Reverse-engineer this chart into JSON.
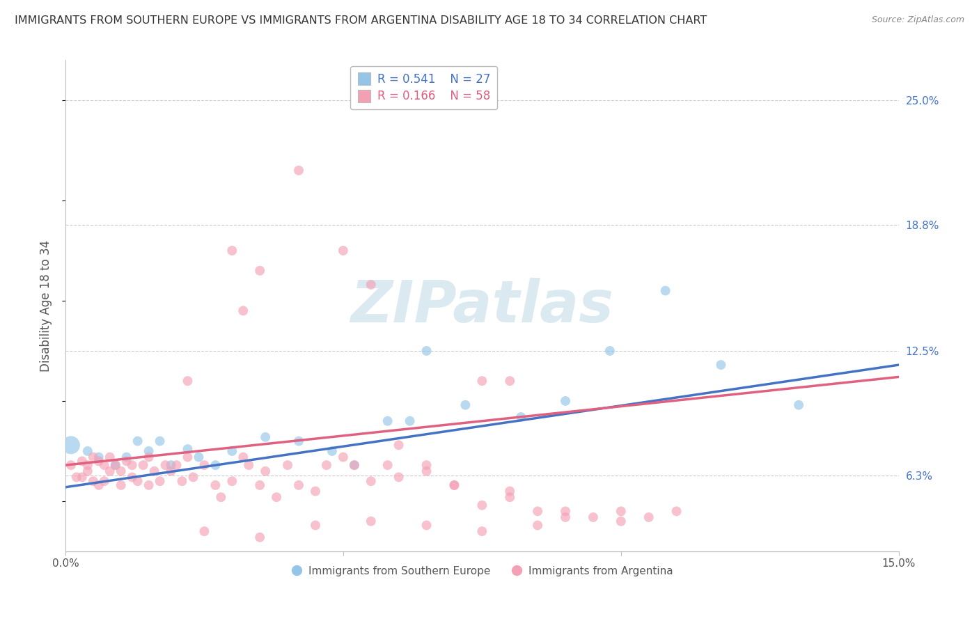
{
  "title": "IMMIGRANTS FROM SOUTHERN EUROPE VS IMMIGRANTS FROM ARGENTINA DISABILITY AGE 18 TO 34 CORRELATION CHART",
  "source": "Source: ZipAtlas.com",
  "ylabel": "Disability Age 18 to 34",
  "xlim": [
    0.0,
    0.15
  ],
  "ylim": [
    0.025,
    0.27
  ],
  "right_ytick_labels": [
    "25.0%",
    "18.8%",
    "12.5%",
    "6.3%"
  ],
  "right_ytick_values": [
    0.25,
    0.188,
    0.125,
    0.063
  ],
  "legend_r1": "R = 0.541",
  "legend_n1": "N = 27",
  "legend_r2": "R = 0.166",
  "legend_n2": "N = 58",
  "legend_label1": "Immigrants from Southern Europe",
  "legend_label2": "Immigrants from Argentina",
  "color_blue": "#92C5E8",
  "color_pink": "#F4A0B4",
  "line_color_blue": "#4472C4",
  "line_color_pink": "#E06080",
  "background_color": "#FFFFFF",
  "grid_color": "#CCCCCC",
  "blue_points": [
    [
      0.001,
      0.078,
      350
    ],
    [
      0.004,
      0.075,
      100
    ],
    [
      0.006,
      0.072,
      100
    ],
    [
      0.009,
      0.068,
      100
    ],
    [
      0.011,
      0.072,
      100
    ],
    [
      0.013,
      0.08,
      100
    ],
    [
      0.015,
      0.075,
      100
    ],
    [
      0.017,
      0.08,
      100
    ],
    [
      0.019,
      0.068,
      100
    ],
    [
      0.022,
      0.076,
      100
    ],
    [
      0.024,
      0.072,
      100
    ],
    [
      0.027,
      0.068,
      100
    ],
    [
      0.03,
      0.075,
      100
    ],
    [
      0.036,
      0.082,
      100
    ],
    [
      0.042,
      0.08,
      100
    ],
    [
      0.048,
      0.075,
      100
    ],
    [
      0.052,
      0.068,
      100
    ],
    [
      0.058,
      0.09,
      100
    ],
    [
      0.062,
      0.09,
      100
    ],
    [
      0.065,
      0.125,
      100
    ],
    [
      0.072,
      0.098,
      100
    ],
    [
      0.082,
      0.092,
      100
    ],
    [
      0.09,
      0.1,
      100
    ],
    [
      0.098,
      0.125,
      100
    ],
    [
      0.108,
      0.155,
      100
    ],
    [
      0.118,
      0.118,
      100
    ],
    [
      0.132,
      0.098,
      100
    ]
  ],
  "pink_points": [
    [
      0.001,
      0.068,
      100
    ],
    [
      0.002,
      0.062,
      100
    ],
    [
      0.003,
      0.07,
      100
    ],
    [
      0.003,
      0.062,
      100
    ],
    [
      0.004,
      0.065,
      100
    ],
    [
      0.004,
      0.068,
      100
    ],
    [
      0.005,
      0.072,
      100
    ],
    [
      0.005,
      0.06,
      100
    ],
    [
      0.006,
      0.07,
      100
    ],
    [
      0.006,
      0.058,
      100
    ],
    [
      0.007,
      0.068,
      100
    ],
    [
      0.007,
      0.06,
      100
    ],
    [
      0.008,
      0.065,
      100
    ],
    [
      0.008,
      0.072,
      100
    ],
    [
      0.009,
      0.068,
      100
    ],
    [
      0.01,
      0.065,
      100
    ],
    [
      0.01,
      0.058,
      100
    ],
    [
      0.011,
      0.07,
      100
    ],
    [
      0.012,
      0.068,
      100
    ],
    [
      0.012,
      0.062,
      100
    ],
    [
      0.013,
      0.06,
      100
    ],
    [
      0.014,
      0.068,
      100
    ],
    [
      0.015,
      0.072,
      100
    ],
    [
      0.015,
      0.058,
      100
    ],
    [
      0.016,
      0.065,
      100
    ],
    [
      0.017,
      0.06,
      100
    ],
    [
      0.018,
      0.068,
      100
    ],
    [
      0.019,
      0.065,
      100
    ],
    [
      0.02,
      0.068,
      100
    ],
    [
      0.021,
      0.06,
      100
    ],
    [
      0.022,
      0.072,
      100
    ],
    [
      0.023,
      0.062,
      100
    ],
    [
      0.025,
      0.068,
      100
    ],
    [
      0.027,
      0.058,
      100
    ],
    [
      0.028,
      0.052,
      100
    ],
    [
      0.03,
      0.06,
      100
    ],
    [
      0.032,
      0.072,
      100
    ],
    [
      0.033,
      0.068,
      100
    ],
    [
      0.035,
      0.058,
      100
    ],
    [
      0.036,
      0.065,
      100
    ],
    [
      0.038,
      0.052,
      100
    ],
    [
      0.04,
      0.068,
      100
    ],
    [
      0.042,
      0.058,
      100
    ],
    [
      0.045,
      0.055,
      100
    ],
    [
      0.047,
      0.068,
      100
    ],
    [
      0.05,
      0.072,
      100
    ],
    [
      0.052,
      0.068,
      100
    ],
    [
      0.055,
      0.06,
      100
    ],
    [
      0.058,
      0.068,
      100
    ],
    [
      0.06,
      0.062,
      100
    ],
    [
      0.065,
      0.065,
      100
    ],
    [
      0.07,
      0.058,
      100
    ],
    [
      0.08,
      0.055,
      100
    ],
    [
      0.09,
      0.045,
      100
    ],
    [
      0.1,
      0.045,
      100
    ],
    [
      0.022,
      0.11,
      100
    ],
    [
      0.03,
      0.175,
      100
    ],
    [
      0.035,
      0.165,
      100
    ],
    [
      0.042,
      0.215,
      100
    ],
    [
      0.05,
      0.175,
      100
    ],
    [
      0.055,
      0.158,
      100
    ],
    [
      0.032,
      0.145,
      100
    ],
    [
      0.06,
      0.078,
      100
    ],
    [
      0.065,
      0.068,
      100
    ],
    [
      0.07,
      0.058,
      100
    ],
    [
      0.075,
      0.048,
      100
    ],
    [
      0.08,
      0.052,
      100
    ],
    [
      0.085,
      0.045,
      100
    ],
    [
      0.09,
      0.042,
      100
    ],
    [
      0.025,
      0.035,
      100
    ],
    [
      0.035,
      0.032,
      100
    ],
    [
      0.045,
      0.038,
      100
    ],
    [
      0.055,
      0.04,
      100
    ],
    [
      0.065,
      0.038,
      100
    ],
    [
      0.075,
      0.035,
      100
    ],
    [
      0.085,
      0.038,
      100
    ],
    [
      0.095,
      0.042,
      100
    ],
    [
      0.1,
      0.04,
      100
    ],
    [
      0.105,
      0.042,
      100
    ],
    [
      0.11,
      0.045,
      100
    ],
    [
      0.075,
      0.11,
      100
    ],
    [
      0.08,
      0.11,
      100
    ]
  ],
  "blue_line": [
    0.0,
    0.15
  ],
  "blue_line_y": [
    0.057,
    0.118
  ],
  "pink_line": [
    0.0,
    0.15
  ],
  "pink_line_y": [
    0.068,
    0.112
  ]
}
